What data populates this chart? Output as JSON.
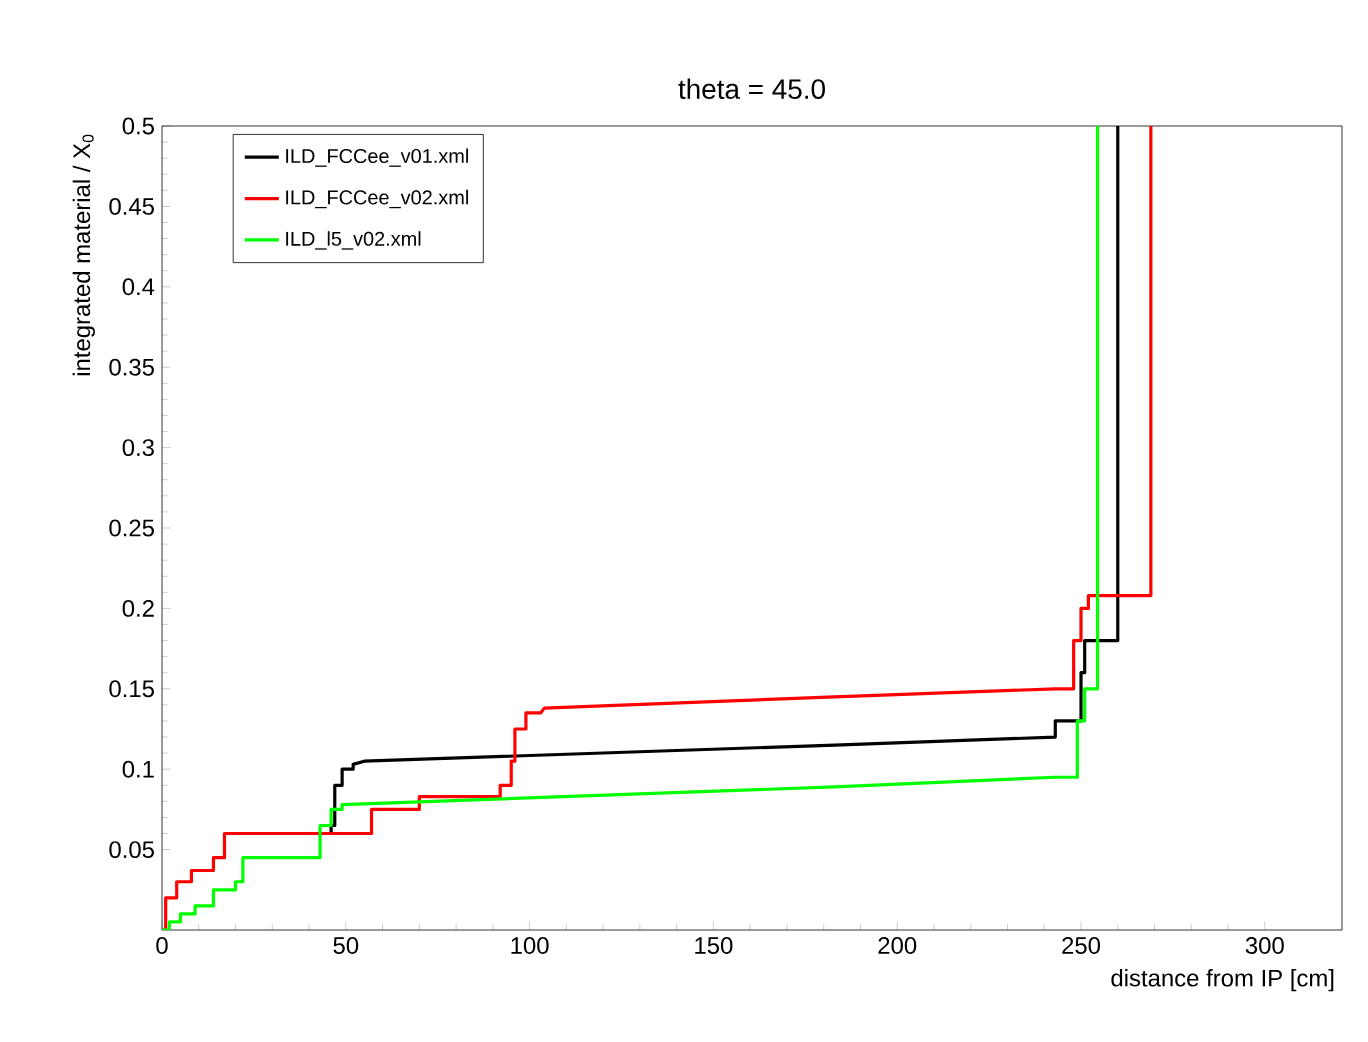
{
  "chart_data": {
    "type": "line",
    "title": "theta = 45.0",
    "xlabel": "distance from IP [cm]",
    "ylabel": "integrated material / X$_{0}$",
    "xlim": [
      0,
      321
    ],
    "ylim": [
      0,
      0.5
    ],
    "xticks": [
      0,
      50,
      100,
      150,
      200,
      250,
      300
    ],
    "yticks": [
      0.05,
      0.1,
      0.15,
      0.2,
      0.25,
      0.3,
      0.35,
      0.4,
      0.45,
      0.5
    ],
    "grid": false,
    "legend": "top left",
    "marker": "none",
    "line_style": "solid",
    "series": [
      {
        "name": "ILD_FCCee_v01.xml",
        "color": "#000000",
        "x": [
          46,
          46,
          47,
          47,
          49,
          49,
          52,
          52,
          55,
          183,
          243,
          243,
          250,
          250,
          251,
          251,
          260,
          260
        ],
        "values": [
          0.06,
          0.065,
          0.065,
          0.09,
          0.09,
          0.1,
          0.1,
          0.103,
          0.105,
          0.115,
          0.12,
          0.13,
          0.13,
          0.16,
          0.16,
          0.18,
          0.18,
          0.5
        ]
      },
      {
        "name": "ILD_FCCee_v02.xml",
        "color": "#ff0000",
        "x": [
          0,
          1,
          1,
          4,
          4,
          8,
          8,
          14,
          14,
          17,
          17,
          57,
          57,
          70,
          70,
          92,
          92,
          95,
          95,
          96,
          96,
          99,
          99,
          103,
          104,
          183,
          243,
          248,
          248,
          250,
          250,
          252,
          252,
          269,
          269
        ],
        "values": [
          0,
          0,
          0.02,
          0.02,
          0.03,
          0.03,
          0.037,
          0.037,
          0.045,
          0.045,
          0.06,
          0.06,
          0.075,
          0.075,
          0.083,
          0.083,
          0.09,
          0.09,
          0.105,
          0.105,
          0.125,
          0.125,
          0.135,
          0.135,
          0.138,
          0.145,
          0.15,
          0.15,
          0.18,
          0.18,
          0.2,
          0.2,
          0.208,
          0.208,
          0.5
        ]
      },
      {
        "name": "ILD_l5_v02.xml",
        "color": "#00ff00",
        "x": [
          0,
          2,
          2,
          5,
          5,
          9,
          9,
          14,
          14,
          20,
          20,
          22,
          22,
          43,
          43,
          46,
          46,
          49,
          49,
          183,
          243,
          249,
          249,
          251,
          251,
          254.5,
          254.5
        ],
        "values": [
          0,
          0,
          0.005,
          0.005,
          0.01,
          0.01,
          0.015,
          0.015,
          0.025,
          0.025,
          0.03,
          0.03,
          0.045,
          0.045,
          0.065,
          0.065,
          0.075,
          0.075,
          0.078,
          0.089,
          0.095,
          0.095,
          0.13,
          0.13,
          0.15,
          0.15,
          0.5
        ]
      }
    ]
  }
}
